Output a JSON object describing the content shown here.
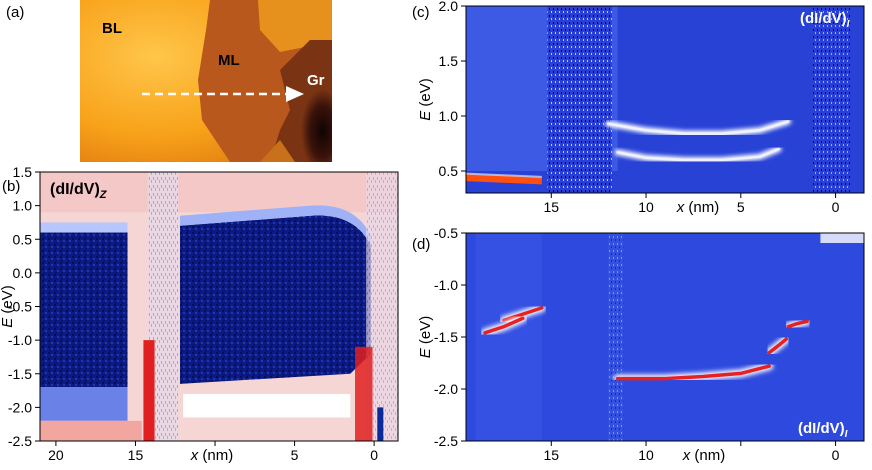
{
  "panel_labels": {
    "a": "(a)",
    "b": "(b)",
    "c": "(c)",
    "d": "(d)"
  },
  "stm_image": {
    "labels": {
      "bl": "BL",
      "ml": "ML",
      "gr": "Gr"
    },
    "colors": {
      "bl": "#f6a21c",
      "ml": "#b6561c",
      "gr": "#120505"
    }
  },
  "axis_words": {
    "energy_label": "E",
    "energy_unit": "(eV)",
    "x_label": "x",
    "x_unit": "(nm)"
  },
  "chart_data": [
    {
      "panel": "b",
      "type": "heatmap",
      "title_main": "(dI/dV)",
      "title_sub": "Z",
      "xlim": [
        21.0,
        -1.5
      ],
      "ylim": [
        -2.5,
        1.5
      ],
      "x_ticks": [
        20,
        15,
        10,
        5,
        0
      ],
      "y_ticks": [
        1.5,
        1.0,
        0.5,
        0.0,
        -0.5,
        -1.0,
        -1.5,
        -2.0,
        -2.5
      ],
      "x_tick_labels": [
        "20",
        "15",
        "",
        "5",
        "0"
      ],
      "y_tick_labels": [
        "1.5",
        "1.0",
        "0.5",
        "0.0",
        "-0.5",
        "-1.0",
        "-1.5",
        "-2.0",
        "-2.5"
      ],
      "colormap": [
        "#0a2a9a",
        "#3a5ad8",
        "#ffffff",
        "#f2a6a0",
        "#e02020"
      ]
    },
    {
      "panel": "c",
      "type": "heatmap",
      "title_main": "(dI/dV)",
      "title_sub": "I",
      "xlim": [
        19.5,
        -1.5
      ],
      "ylim": [
        0.3,
        2.0
      ],
      "x_ticks": [
        15,
        10,
        5,
        0
      ],
      "y_ticks": [
        2.0,
        1.5,
        1.0,
        0.5
      ],
      "x_tick_labels": [
        "15",
        "10",
        "5",
        "0"
      ],
      "y_tick_labels": [
        "2.0",
        "1.5",
        "1.0",
        "0.5"
      ],
      "bands": [
        {
          "x": [
            12.0,
            10.0,
            8.0,
            6.0,
            4.0,
            2.5
          ],
          "e": [
            0.93,
            0.87,
            0.84,
            0.84,
            0.87,
            0.95
          ]
        },
        {
          "x": [
            11.5,
            10.0,
            8.0,
            6.0,
            4.0,
            3.0
          ],
          "e": [
            0.67,
            0.62,
            0.6,
            0.6,
            0.63,
            0.7
          ]
        }
      ],
      "hot_segment": {
        "x": [
          19.5,
          15.5
        ],
        "e": [
          0.44,
          0.41
        ]
      }
    },
    {
      "panel": "d",
      "type": "heatmap",
      "title_main": "(dI/dV)",
      "title_sub": "I",
      "xlim": [
        19.5,
        -1.5
      ],
      "ylim": [
        -2.5,
        -0.5
      ],
      "x_ticks": [
        15,
        10,
        5,
        0
      ],
      "y_ticks": [
        -0.5,
        -1.0,
        -1.5,
        -2.0,
        -2.5
      ],
      "x_tick_labels": [
        "15",
        "10",
        "",
        "0"
      ],
      "y_tick_labels": [
        "-0.5",
        "-1.0",
        "-1.5",
        "-2.0",
        "-2.5"
      ],
      "bands": [
        {
          "x": [
            11.5,
            9.0,
            7.0,
            5.0,
            3.5
          ],
          "e": [
            -1.9,
            -1.9,
            -1.88,
            -1.85,
            -1.78
          ]
        },
        {
          "x": [
            15.5,
            16.5,
            17.5
          ],
          "e": [
            -1.22,
            -1.28,
            -1.34
          ]
        },
        {
          "x": [
            16.5,
            17.5,
            18.5
          ],
          "e": [
            -1.32,
            -1.4,
            -1.46
          ]
        },
        {
          "x": [
            2.5,
            2.0,
            1.5
          ],
          "e": [
            -1.4,
            -1.37,
            -1.35
          ]
        },
        {
          "x": [
            3.5,
            3.0,
            2.6
          ],
          "e": [
            -1.65,
            -1.58,
            -1.52
          ]
        }
      ]
    }
  ]
}
